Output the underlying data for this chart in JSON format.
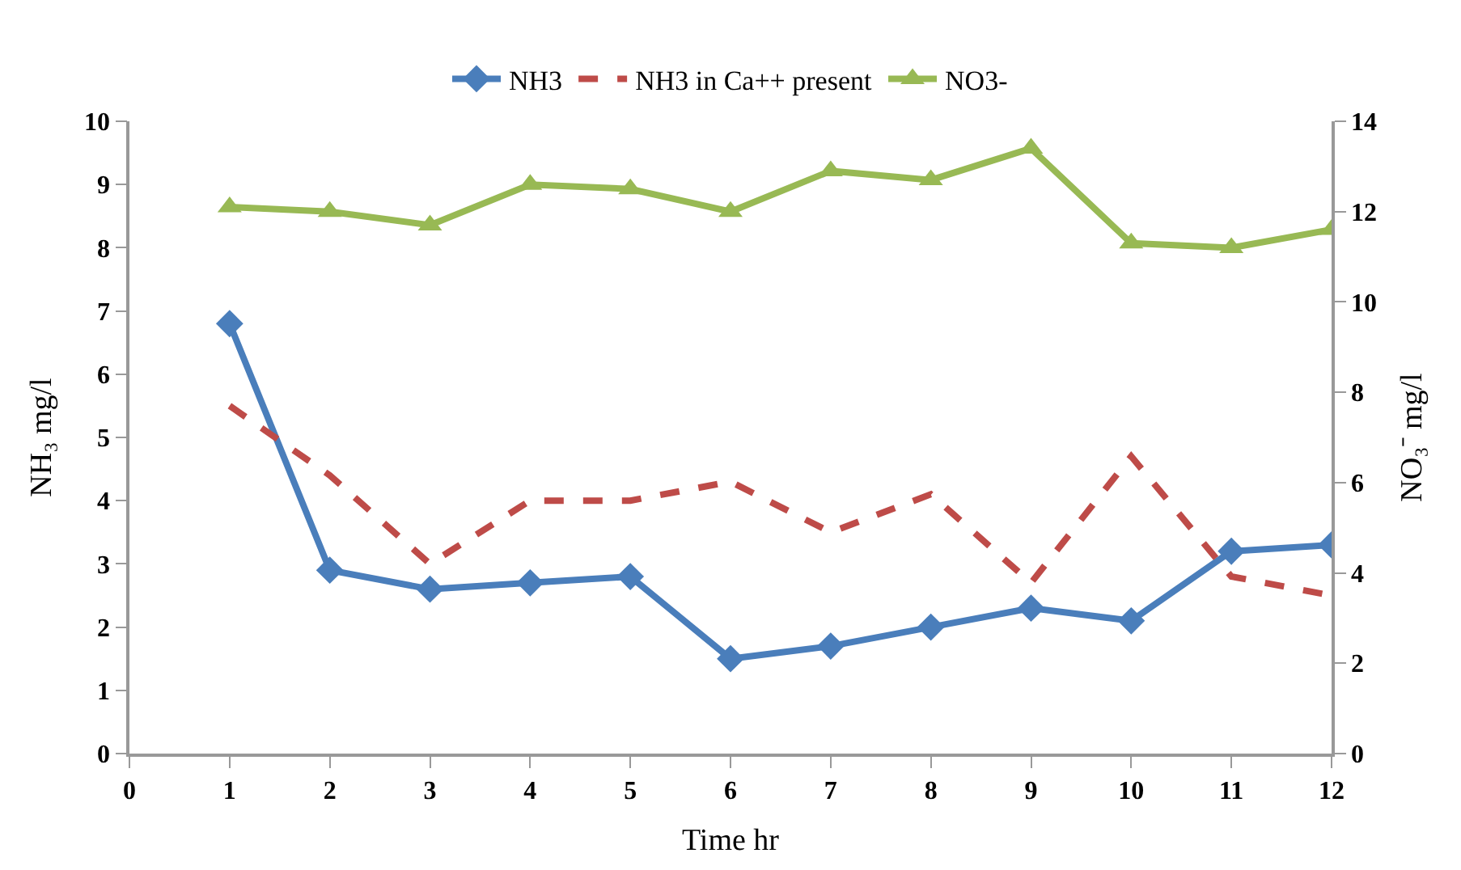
{
  "chart_data": {
    "type": "line",
    "xlabel": "Time hr",
    "ylabel": "NH₃ mg/l",
    "y2label": "NO₃⁻ mg/l",
    "x": [
      1,
      2,
      3,
      4,
      5,
      6,
      7,
      8,
      9,
      10,
      11,
      12
    ],
    "series": [
      {
        "name": "NH3",
        "color": "#4a7ebb",
        "marker": "diamond",
        "line_style": "solid",
        "values": [
          6.8,
          2.9,
          2.6,
          2.7,
          2.8,
          1.5,
          1.7,
          2.0,
          2.3,
          2.1,
          3.2,
          3.3
        ]
      },
      {
        "name": "NH3 in Ca++ present",
        "color": "#be4b48",
        "marker": "none",
        "line_style": "dashed",
        "values": [
          5.5,
          4.4,
          3.0,
          4.0,
          4.0,
          4.3,
          3.5,
          4.1,
          2.7,
          4.7,
          2.8,
          2.5
        ]
      },
      {
        "name": "NO3-",
        "color": "#98b954",
        "marker": "triangle",
        "line_style": "solid",
        "axis": "y2",
        "values": [
          12.1,
          12.0,
          11.7,
          12.6,
          12.5,
          12.0,
          12.9,
          12.7,
          13.4,
          11.3,
          11.2,
          11.6
        ]
      }
    ],
    "xlim": [
      0,
      12
    ],
    "xticks": [
      0,
      1,
      2,
      3,
      4,
      5,
      6,
      7,
      8,
      9,
      10,
      11,
      12
    ],
    "ylim": [
      0,
      10
    ],
    "yticks": [
      0,
      1,
      2,
      3,
      4,
      5,
      6,
      7,
      8,
      9,
      10
    ],
    "y2lim": [
      0,
      14
    ],
    "y2ticks": [
      0,
      2,
      4,
      6,
      8,
      10,
      12,
      14
    ],
    "legend": "top"
  }
}
